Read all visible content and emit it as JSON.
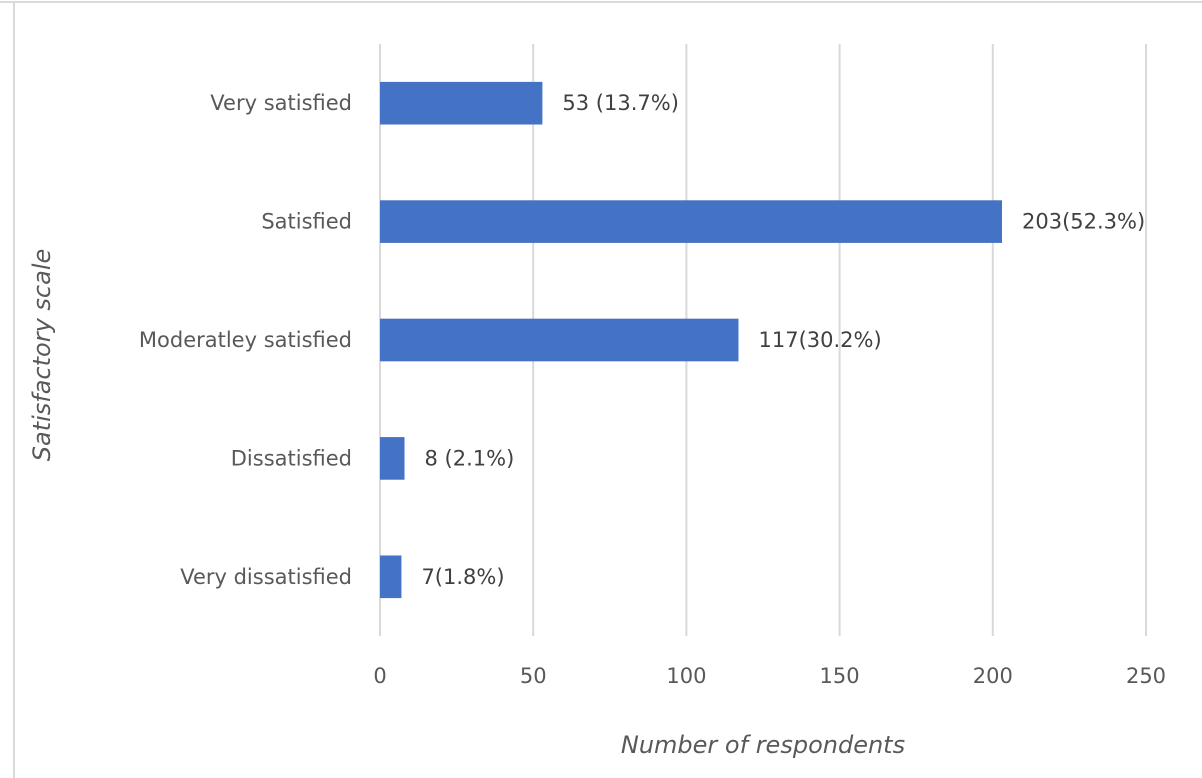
{
  "chart_data": {
    "type": "bar",
    "orientation": "horizontal",
    "title": "",
    "xlabel": "Number of respondents",
    "ylabel": "Satisfactory scale",
    "categories": [
      "Very satisfied",
      "Satisfied",
      "Moderatley satisfied",
      "Dissatisfied",
      "Very dissatisfied"
    ],
    "values": [
      53,
      203,
      117,
      8,
      7
    ],
    "data_labels": [
      "53 (13.7%)",
      "203(52.3%)",
      "117(30.2%)",
      "8 (2.1%)",
      "7(1.8%)"
    ],
    "xlim": [
      0,
      250
    ],
    "xticks": [
      0,
      50,
      100,
      150,
      200,
      250
    ],
    "xtick_labels": [
      "0",
      "50",
      "100",
      "150",
      "200",
      "250"
    ],
    "grid": "vertical",
    "bar_color": "#4472C4",
    "gridline_color": "#D9D9D9"
  }
}
